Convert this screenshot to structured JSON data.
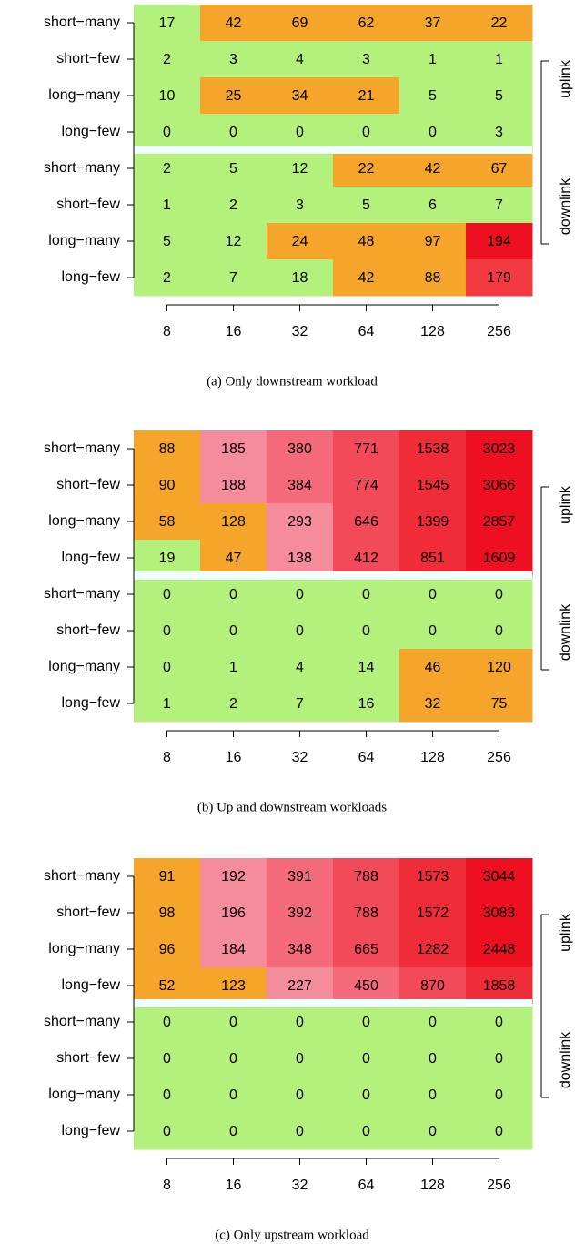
{
  "chart_data": [
    {
      "type": "heatmap",
      "caption": "(a) Only downstream workload",
      "rows": [
        "short−many",
        "short−few",
        "long−many",
        "long−few",
        "short−many",
        "short−few",
        "long−many",
        "long−few"
      ],
      "categories": [
        8,
        16,
        32,
        64,
        128,
        256
      ],
      "groups": [
        "uplink",
        "downlink"
      ],
      "values": [
        [
          17,
          42,
          69,
          62,
          37,
          22
        ],
        [
          2,
          3,
          4,
          3,
          1,
          1
        ],
        [
          10,
          25,
          34,
          21,
          5,
          5
        ],
        [
          0,
          0,
          0,
          0,
          0,
          3
        ],
        [
          2,
          5,
          12,
          22,
          42,
          67
        ],
        [
          1,
          2,
          3,
          5,
          6,
          7
        ],
        [
          5,
          12,
          24,
          48,
          97,
          194
        ],
        [
          2,
          7,
          18,
          42,
          88,
          179
        ]
      ],
      "colors": [
        [
          "#b3f07c",
          "#f5a52a",
          "#f5a52a",
          "#f5a52a",
          "#f5a52a",
          "#f5a52a"
        ],
        [
          "#b3f07c",
          "#b3f07c",
          "#b3f07c",
          "#b3f07c",
          "#b3f07c",
          "#b3f07c"
        ],
        [
          "#b3f07c",
          "#f5a52a",
          "#f5a52a",
          "#f5a52a",
          "#b3f07c",
          "#b3f07c"
        ],
        [
          "#b3f07c",
          "#b3f07c",
          "#b3f07c",
          "#b3f07c",
          "#b3f07c",
          "#b3f07c"
        ],
        [
          "#b3f07c",
          "#b3f07c",
          "#b3f07c",
          "#f5a52a",
          "#f5a52a",
          "#f5a52a"
        ],
        [
          "#b3f07c",
          "#b3f07c",
          "#b3f07c",
          "#b3f07c",
          "#b3f07c",
          "#b3f07c"
        ],
        [
          "#b3f07c",
          "#b3f07c",
          "#f5a52a",
          "#f5a52a",
          "#f5a52a",
          "#ee1020"
        ],
        [
          "#b3f07c",
          "#b3f07c",
          "#b3f07c",
          "#f5a52a",
          "#f5a52a",
          "#f23a40"
        ]
      ]
    },
    {
      "type": "heatmap",
      "caption": "(b) Up and downstream workloads",
      "rows": [
        "short−many",
        "short−few",
        "long−many",
        "long−few",
        "short−many",
        "short−few",
        "long−many",
        "long−few"
      ],
      "categories": [
        8,
        16,
        32,
        64,
        128,
        256
      ],
      "groups": [
        "uplink",
        "downlink"
      ],
      "values": [
        [
          88,
          185,
          380,
          771,
          1538,
          3023
        ],
        [
          90,
          188,
          384,
          774,
          1545,
          3066
        ],
        [
          58,
          128,
          293,
          646,
          1399,
          2857
        ],
        [
          19,
          47,
          138,
          412,
          851,
          1609
        ],
        [
          0,
          0,
          0,
          0,
          0,
          0
        ],
        [
          0,
          0,
          0,
          0,
          0,
          0
        ],
        [
          0,
          1,
          4,
          14,
          46,
          120
        ],
        [
          1,
          2,
          7,
          16,
          32,
          75
        ]
      ],
      "colors": [
        [
          "#f5a52a",
          "#f58c9c",
          "#f46a7a",
          "#f24a58",
          "#f02c38",
          "#ee1020"
        ],
        [
          "#f5a52a",
          "#f58c9c",
          "#f46a7a",
          "#f24a58",
          "#f02c38",
          "#ee1020"
        ],
        [
          "#f5a52a",
          "#f5a52a",
          "#f58c9c",
          "#f24a58",
          "#f02c38",
          "#ee1020"
        ],
        [
          "#b3f07c",
          "#f5a52a",
          "#f58c9c",
          "#f24a58",
          "#f02c38",
          "#ee1020"
        ],
        [
          "#b3f07c",
          "#b3f07c",
          "#b3f07c",
          "#b3f07c",
          "#b3f07c",
          "#b3f07c"
        ],
        [
          "#b3f07c",
          "#b3f07c",
          "#b3f07c",
          "#b3f07c",
          "#b3f07c",
          "#b3f07c"
        ],
        [
          "#b3f07c",
          "#b3f07c",
          "#b3f07c",
          "#b3f07c",
          "#f5a52a",
          "#f5a52a"
        ],
        [
          "#b3f07c",
          "#b3f07c",
          "#b3f07c",
          "#b3f07c",
          "#f5a52a",
          "#f5a52a"
        ]
      ]
    },
    {
      "type": "heatmap",
      "caption": "(c) Only upstream workload",
      "rows": [
        "short−many",
        "short−few",
        "long−many",
        "long−few",
        "short−many",
        "short−few",
        "long−many",
        "long−few"
      ],
      "categories": [
        8,
        16,
        32,
        64,
        128,
        256
      ],
      "groups": [
        "uplink",
        "downlink"
      ],
      "values": [
        [
          91,
          192,
          391,
          788,
          1573,
          3044
        ],
        [
          98,
          196,
          392,
          788,
          1572,
          3083
        ],
        [
          96,
          184,
          348,
          665,
          1282,
          2448
        ],
        [
          52,
          123,
          227,
          450,
          870,
          1858
        ],
        [
          0,
          0,
          0,
          0,
          0,
          0
        ],
        [
          0,
          0,
          0,
          0,
          0,
          0
        ],
        [
          0,
          0,
          0,
          0,
          0,
          0
        ],
        [
          0,
          0,
          0,
          0,
          0,
          0
        ]
      ],
      "colors": [
        [
          "#f5a52a",
          "#f58c9c",
          "#f46a7a",
          "#f24a58",
          "#f02c38",
          "#ee1020"
        ],
        [
          "#f5a52a",
          "#f58c9c",
          "#f46a7a",
          "#f24a58",
          "#f02c38",
          "#ee1020"
        ],
        [
          "#f5a52a",
          "#f58c9c",
          "#f46a7a",
          "#f24a58",
          "#f02c38",
          "#ee1020"
        ],
        [
          "#f5a52a",
          "#f5a52a",
          "#f58c9c",
          "#f46a7a",
          "#f24a58",
          "#f02c38"
        ],
        [
          "#b3f07c",
          "#b3f07c",
          "#b3f07c",
          "#b3f07c",
          "#b3f07c",
          "#b3f07c"
        ],
        [
          "#b3f07c",
          "#b3f07c",
          "#b3f07c",
          "#b3f07c",
          "#b3f07c",
          "#b3f07c"
        ],
        [
          "#b3f07c",
          "#b3f07c",
          "#b3f07c",
          "#b3f07c",
          "#b3f07c",
          "#b3f07c"
        ],
        [
          "#b3f07c",
          "#b3f07c",
          "#b3f07c",
          "#b3f07c",
          "#b3f07c",
          "#b3f07c"
        ]
      ]
    }
  ]
}
